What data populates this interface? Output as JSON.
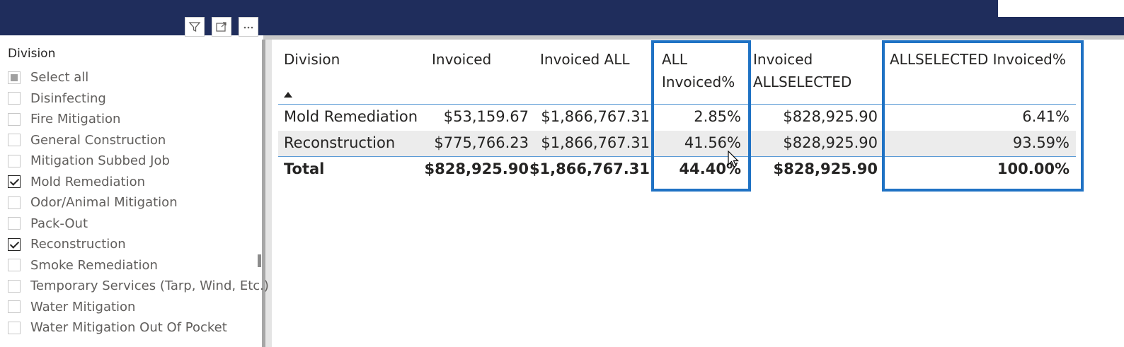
{
  "slicer": {
    "title": "Division",
    "items": [
      {
        "label": "Select all",
        "state": "partial"
      },
      {
        "label": "Disinfecting",
        "state": "unchecked"
      },
      {
        "label": "Fire Mitigation",
        "state": "unchecked"
      },
      {
        "label": "General Construction",
        "state": "unchecked"
      },
      {
        "label": "Mitigation Subbed Job",
        "state": "unchecked"
      },
      {
        "label": "Mold Remediation",
        "state": "checked"
      },
      {
        "label": "Odor/Animal Mitigation",
        "state": "unchecked"
      },
      {
        "label": "Pack-Out",
        "state": "unchecked"
      },
      {
        "label": "Reconstruction",
        "state": "checked"
      },
      {
        "label": "Smoke Remediation",
        "state": "unchecked"
      },
      {
        "label": "Temporary Services (Tarp, Wind, Etc.)",
        "state": "unchecked"
      },
      {
        "label": "Water Mitigation",
        "state": "unchecked"
      },
      {
        "label": "Water Mitigation Out Of Pocket",
        "state": "unchecked"
      }
    ]
  },
  "visual_header": {
    "icons": [
      "filter-icon",
      "focus-mode-icon",
      "more-options-icon"
    ]
  },
  "table": {
    "headers": {
      "division": "Division",
      "invoiced": "Invoiced",
      "invoiced_all": "Invoiced ALL",
      "all_pct_1": "ALL",
      "all_pct_2": "Invoiced%",
      "inv_allsel_1": "Invoiced",
      "inv_allsel_2": "ALLSELECTED",
      "allsel_pct": "ALLSELECTED Invoiced%"
    },
    "rows": [
      {
        "division": "Mold Remediation",
        "invoiced": "$53,159.67",
        "invoiced_all": "$1,866,767.31",
        "all_pct": "2.85%",
        "inv_allsel": "$828,925.90",
        "allsel_pct": "6.41%"
      },
      {
        "division": "Reconstruction",
        "invoiced": "$775,766.23",
        "invoiced_all": "$1,866,767.31",
        "all_pct": "41.56%",
        "inv_allsel": "$828,925.90",
        "allsel_pct": "93.59%"
      }
    ],
    "total": {
      "division": "Total",
      "invoiced": "$828,925.90",
      "invoiced_all": "$1,866,767.31",
      "all_pct": "44.40%",
      "inv_allsel": "$828,925.90",
      "allsel_pct": "100.00%"
    }
  },
  "colors": {
    "topbar": "#1f2d5c",
    "highlight": "#1f72c4",
    "rule": "#5b9bd5"
  }
}
